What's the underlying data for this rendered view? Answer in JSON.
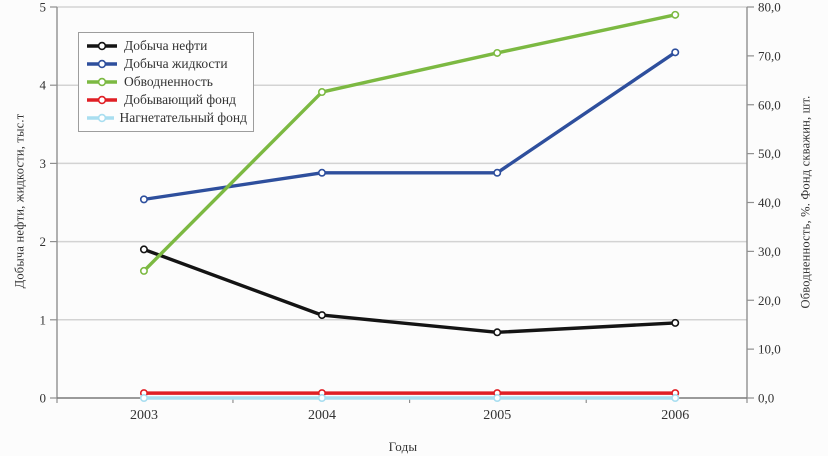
{
  "chart_data": {
    "type": "line",
    "title": "",
    "x_title": "Годы",
    "categories": [
      "2003",
      "2004",
      "2005",
      "2006"
    ],
    "axes": {
      "left": {
        "title": "Добыча нефти, жидкости, тыс.т",
        "min": 0,
        "max": 5,
        "tick_labels": [
          "0",
          "1",
          "2",
          "3",
          "4",
          "5"
        ]
      },
      "right": {
        "title": "Обводненность, %. Фонд скважин, шт.",
        "min": 0,
        "max": 80,
        "tick_labels": [
          "0,0",
          "10,0",
          "20,0",
          "30,0",
          "40,0",
          "50,0",
          "60,0",
          "70,0",
          "80,0"
        ]
      }
    },
    "series": [
      {
        "name": "Добыча нефти",
        "axis": "left",
        "color": "#141414",
        "values": [
          1.9,
          1.06,
          0.84,
          0.96
        ]
      },
      {
        "name": "Добыча жидкости",
        "axis": "left",
        "color": "#2e4f9d",
        "values": [
          2.54,
          2.88,
          2.88,
          4.42
        ]
      },
      {
        "name": "Обводненность",
        "axis": "right",
        "color": "#7cb942",
        "values": [
          26.0,
          62.6,
          70.6,
          78.4
        ]
      },
      {
        "name": "Добывающий фонд",
        "axis": "right",
        "color": "#e01f25",
        "values": [
          1,
          1,
          1,
          1
        ]
      },
      {
        "name": "Нагнетательный фонд",
        "axis": "right",
        "color": "#a9def0",
        "values": [
          0,
          0,
          0,
          0
        ]
      }
    ],
    "legend_position": "top-left",
    "grid": "horizontal",
    "marker": "open-circle"
  },
  "colors": {
    "background": "#fcfcfc",
    "gridline": "#d3d3d3",
    "axis": "#8f8f8f",
    "x_axis": "#7a7a7a",
    "text": "#333333",
    "legend_border": "#9d9d9d"
  }
}
